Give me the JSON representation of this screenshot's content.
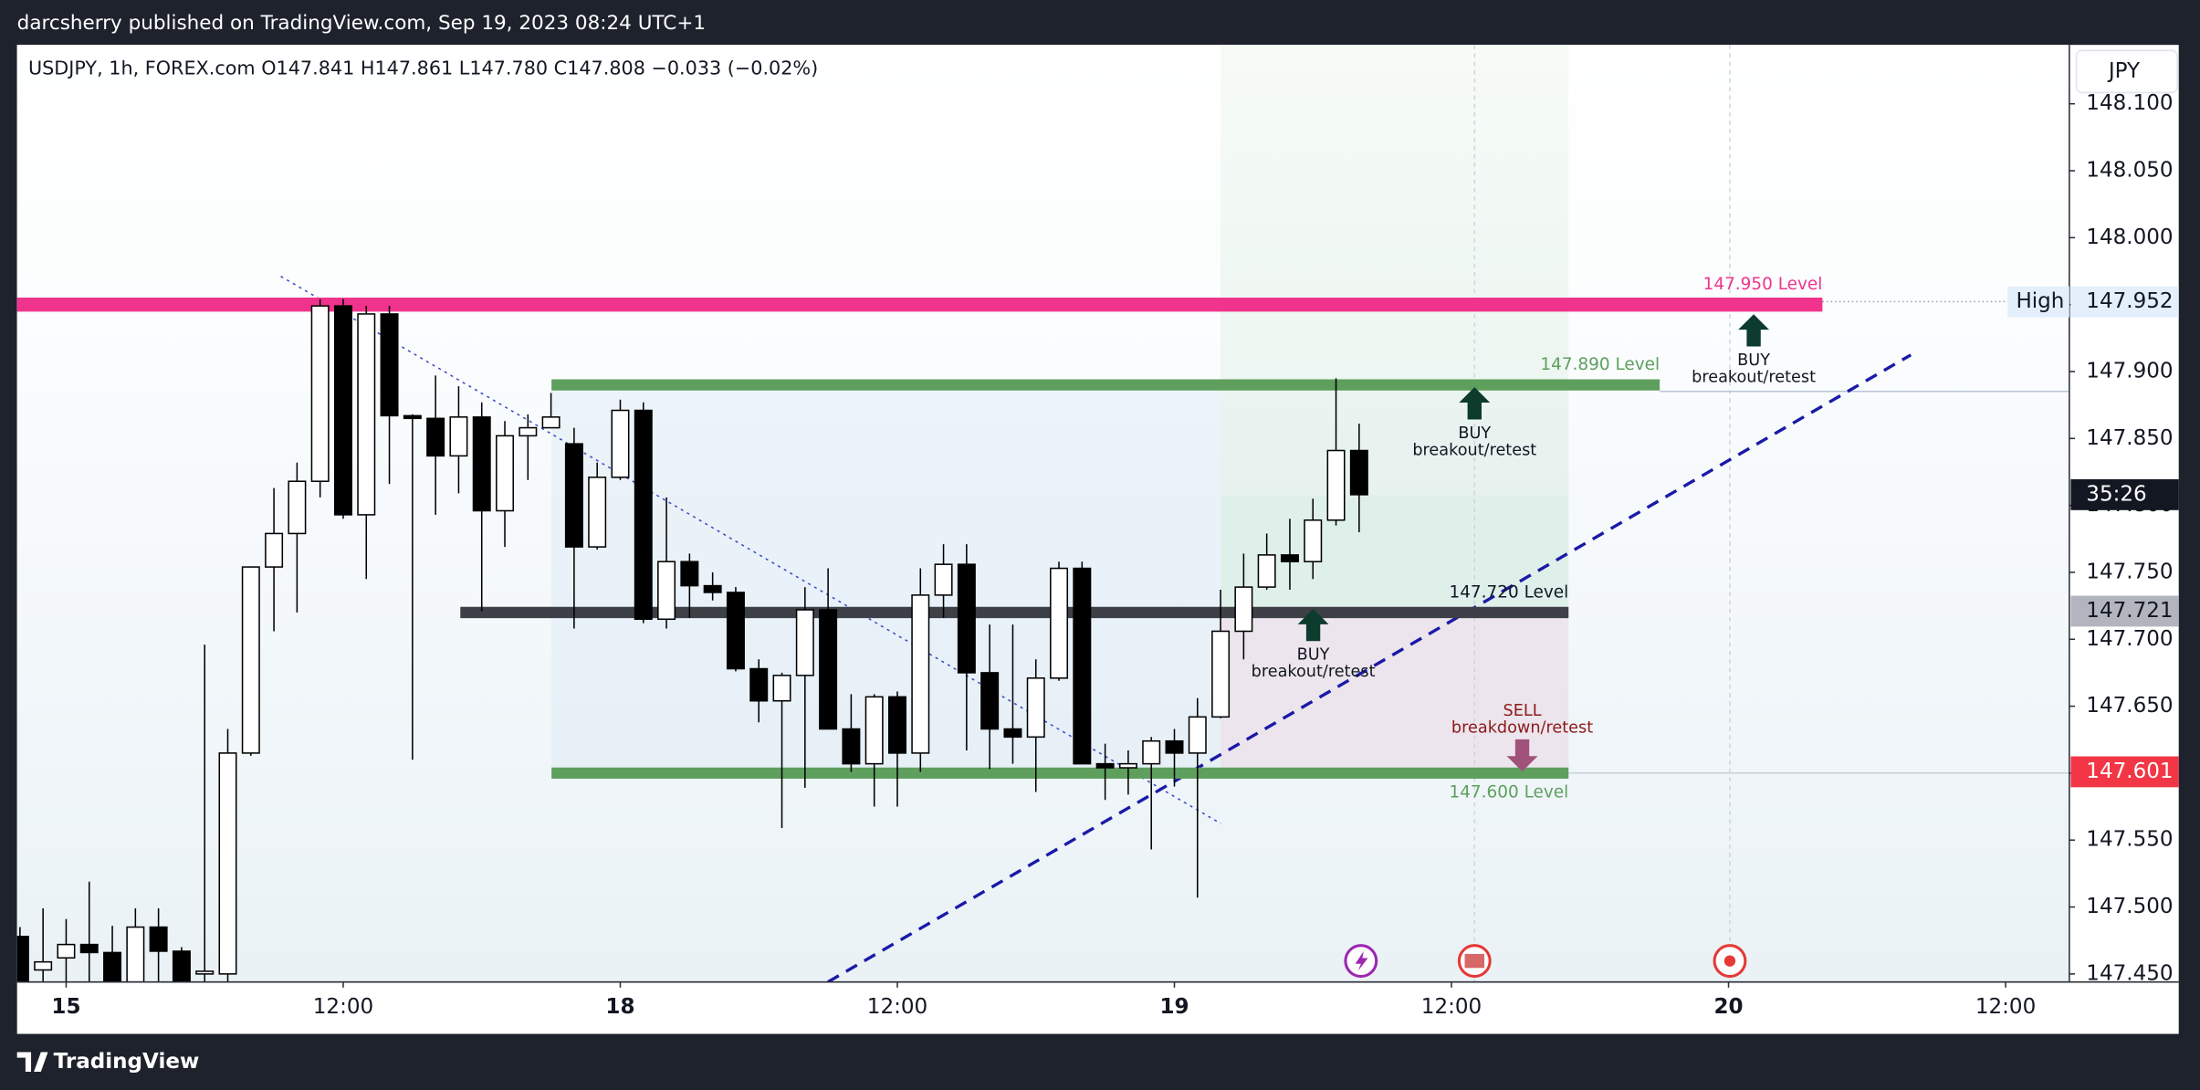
{
  "header": {
    "published": "darcsherry published on TradingView.com, Sep 19, 2023 08:24 UTC+1",
    "brand": "TradingView"
  },
  "chart_data": {
    "type": "candlestick",
    "legend": "USDJPY, 1h, FOREX.com  O147.841  H147.861  L147.780  C147.808  −0.033 (−0.02%)",
    "currency": "JPY",
    "x": [
      -2,
      -1,
      0,
      1,
      2,
      3,
      4,
      5,
      6,
      7,
      8,
      9,
      10,
      11,
      12,
      13,
      14,
      15,
      16,
      17,
      18,
      19,
      20,
      21,
      22,
      23,
      24,
      25,
      26,
      27,
      28,
      29,
      30,
      31,
      32,
      33,
      34,
      35,
      36,
      37,
      38,
      39,
      40,
      41,
      42,
      43,
      44,
      45,
      46,
      47,
      48,
      49,
      50,
      51,
      52,
      53,
      54,
      55,
      56
    ],
    "open": [
      147.478,
      147.453,
      147.462,
      147.472,
      147.466,
      147.444,
      147.485,
      147.467,
      147.45,
      147.45,
      147.615,
      147.754,
      147.779,
      147.818,
      147.949,
      147.793,
      147.943,
      147.867,
      147.865,
      147.837,
      147.866,
      147.796,
      147.852,
      147.858,
      147.846,
      147.769,
      147.821,
      147.871,
      147.715,
      147.758,
      147.74,
      147.735,
      147.678,
      147.654,
      147.673,
      147.722,
      147.633,
      147.607,
      147.657,
      147.615,
      147.733,
      147.756,
      147.675,
      147.633,
      147.627,
      147.671,
      147.753,
      147.607,
      147.604,
      147.607,
      147.624,
      147.615,
      147.642,
      147.706,
      147.739,
      147.763,
      147.758,
      147.789,
      147.841
    ],
    "high": [
      147.485,
      147.499,
      147.491,
      147.519,
      147.486,
      147.499,
      147.499,
      147.47,
      147.696,
      147.633,
      147.754,
      147.813,
      147.832,
      147.954,
      147.954,
      147.949,
      147.949,
      147.868,
      147.897,
      147.889,
      147.877,
      147.863,
      147.868,
      147.884,
      147.858,
      147.832,
      147.879,
      147.877,
      147.806,
      147.764,
      147.75,
      147.739,
      147.685,
      147.675,
      147.739,
      147.753,
      147.659,
      147.659,
      147.661,
      147.753,
      147.771,
      147.771,
      147.711,
      147.711,
      147.685,
      147.758,
      147.758,
      147.622,
      147.617,
      147.627,
      147.633,
      147.656,
      147.737,
      147.764,
      147.779,
      147.79,
      147.805,
      147.895,
      147.861
    ],
    "low": [
      147.44,
      147.44,
      147.44,
      147.44,
      147.44,
      147.44,
      147.44,
      147.44,
      147.44,
      147.44,
      147.613,
      147.706,
      147.72,
      147.806,
      147.79,
      147.745,
      147.816,
      147.61,
      147.793,
      147.809,
      147.721,
      147.769,
      147.819,
      147.858,
      147.708,
      147.767,
      147.819,
      147.712,
      147.708,
      147.716,
      147.729,
      147.676,
      147.638,
      147.559,
      147.589,
      147.633,
      147.601,
      147.575,
      147.575,
      147.601,
      147.716,
      147.617,
      147.603,
      147.607,
      147.586,
      147.669,
      147.607,
      147.58,
      147.584,
      147.543,
      147.59,
      147.507,
      147.641,
      147.685,
      147.737,
      147.737,
      147.745,
      147.785,
      147.78
    ],
    "close": [
      147.445,
      147.459,
      147.472,
      147.466,
      147.444,
      147.485,
      147.467,
      147.444,
      147.452,
      147.615,
      147.754,
      147.779,
      147.818,
      147.949,
      147.793,
      147.943,
      147.867,
      147.865,
      147.837,
      147.866,
      147.796,
      147.852,
      147.858,
      147.866,
      147.769,
      147.821,
      147.871,
      147.715,
      147.758,
      147.74,
      147.735,
      147.678,
      147.654,
      147.673,
      147.722,
      147.633,
      147.607,
      147.657,
      147.615,
      147.733,
      147.756,
      147.675,
      147.633,
      147.627,
      147.671,
      147.753,
      147.607,
      147.604,
      147.607,
      147.624,
      147.615,
      147.642,
      147.706,
      147.739,
      147.763,
      147.758,
      147.789,
      147.841,
      147.808
    ],
    "up_color": "#ffffff",
    "down_color": "#000000",
    "xlim": [
      -2.126,
      86.76
    ],
    "xticks": [
      {
        "value": 0,
        "label": "15"
      },
      {
        "value": 12,
        "label": "12:00"
      },
      {
        "value": 24,
        "label": "18"
      },
      {
        "value": 36,
        "label": "12:00"
      },
      {
        "value": 48,
        "label": "19"
      },
      {
        "value": 60,
        "label": "12:00"
      },
      {
        "value": 72,
        "label": "20"
      },
      {
        "value": 84,
        "label": "12:00"
      }
    ],
    "ylim": [
      147.444,
      148.144
    ],
    "yticks": [
      {
        "value": 147.45,
        "label": "147.450"
      },
      {
        "value": 147.5,
        "label": "147.500"
      },
      {
        "value": 147.55,
        "label": "147.550"
      },
      {
        "value": 147.6,
        "label": "147.600"
      },
      {
        "value": 147.65,
        "label": "147.650"
      },
      {
        "value": 147.7,
        "label": "147.700"
      },
      {
        "value": 147.75,
        "label": "147.750"
      },
      {
        "value": 147.8,
        "label": "147.800"
      },
      {
        "value": 147.85,
        "label": "147.850"
      },
      {
        "value": 147.9,
        "label": "147.900"
      },
      {
        "value": 147.95,
        "label": "147.950"
      },
      {
        "value": 148,
        "label": "148.000"
      },
      {
        "value": 148.05,
        "label": "148.050"
      },
      {
        "value": 148.1,
        "label": "148.100"
      }
    ],
    "levels": [
      {
        "price": 147.95,
        "label": "147.950 Level",
        "color": "#f0338c"
      },
      {
        "price": 147.89,
        "label": "147.890 Level",
        "color": "#5e9f5e"
      },
      {
        "price": 147.72,
        "label": "147.720 Level",
        "color": "#3d4047"
      },
      {
        "price": 147.6,
        "label": "147.600 Level",
        "color": "#5e9f5e"
      }
    ],
    "price_labels": [
      {
        "value": 147.952,
        "label": "147.952",
        "tag": "High"
      },
      {
        "value": 147.808,
        "label": "35:26"
      },
      {
        "value": 147.721,
        "label": "147.721"
      },
      {
        "value": 147.601,
        "label": "147.601"
      }
    ],
    "signals": [
      {
        "label": "BUY",
        "note": "breakout/retest"
      },
      {
        "label": "BUY",
        "note": "breakout/retest"
      },
      {
        "label": "BUY",
        "note": "breakout/retest"
      },
      {
        "label": "SELL",
        "note": "breakdown/retest"
      }
    ]
  }
}
